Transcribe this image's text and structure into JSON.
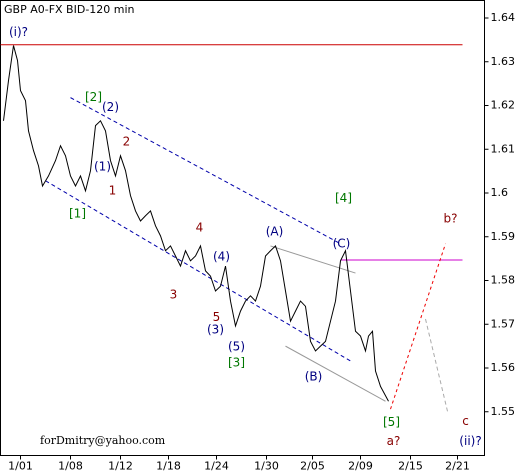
{
  "chart_data": {
    "type": "line",
    "title": "GBP A0-FX BID-120 min",
    "credit": "forDmitry@yahoo.com",
    "xlim": [
      0,
      96.8
    ],
    "ylim": [
      1.54,
      1.644
    ],
    "yticks": [
      1.55,
      1.56,
      1.57,
      1.58,
      1.59,
      1.6,
      1.61,
      1.62,
      1.63,
      1.64
    ],
    "xticks": [
      {
        "value": 4,
        "label": "1/01"
      },
      {
        "value": 14,
        "label": "1/08"
      },
      {
        "value": 24,
        "label": "1/12"
      },
      {
        "value": 33.6,
        "label": "1/18"
      },
      {
        "value": 43.2,
        "label": "1/24"
      },
      {
        "value": 53.2,
        "label": "1/30"
      },
      {
        "value": 62.4,
        "label": "2/05"
      },
      {
        "value": 72,
        "label": "2/09"
      },
      {
        "value": 82,
        "label": "2/15"
      },
      {
        "value": 91.4,
        "label": "2/21"
      }
    ],
    "series": [
      {
        "name": "GBP",
        "color": "#000000",
        "x": [
          0.6,
          1.6,
          2.6,
          3.4,
          4,
          5,
          5.6,
          6.6,
          7.6,
          8.4,
          9.6,
          11,
          12,
          13,
          14,
          15,
          16,
          17,
          18,
          19,
          20,
          21,
          22,
          23,
          24,
          25,
          26,
          27,
          28,
          29,
          30,
          31,
          32,
          33,
          34,
          35,
          36,
          37,
          38,
          39,
          40,
          41,
          42,
          43,
          44,
          45,
          46,
          47,
          48,
          49,
          50,
          51,
          52,
          53,
          54,
          55,
          56,
          57,
          58,
          59,
          60,
          61,
          62,
          63,
          64,
          65,
          66,
          67,
          68,
          69,
          70,
          71,
          72,
          73,
          73.6,
          74.4,
          75,
          76,
          77.6
        ],
        "values": [
          1.6165,
          1.6257,
          1.6337,
          1.6303,
          1.6234,
          1.6211,
          1.6142,
          1.6097,
          1.6062,
          1.6016,
          1.6039,
          1.6074,
          1.6108,
          1.6085,
          1.6039,
          1.6016,
          1.6039,
          1.6005,
          1.6051,
          1.6154,
          1.6165,
          1.6142,
          1.6074,
          1.6039,
          1.6085,
          1.6051,
          1.5994,
          1.5959,
          1.5936,
          1.5948,
          1.5959,
          1.5925,
          1.5902,
          1.5868,
          1.5879,
          1.5856,
          1.5833,
          1.5868,
          1.5845,
          1.5856,
          1.5879,
          1.5822,
          1.581,
          1.5776,
          1.5787,
          1.5833,
          1.5753,
          1.5696,
          1.573,
          1.5753,
          1.5765,
          1.5753,
          1.5787,
          1.5856,
          1.5868,
          1.5879,
          1.5845,
          1.5776,
          1.5707,
          1.573,
          1.5753,
          1.5741,
          1.5661,
          1.5639,
          1.565,
          1.5661,
          1.5707,
          1.5753,
          1.5845,
          1.5868,
          1.5776,
          1.5684,
          1.5673,
          1.5639,
          1.5673,
          1.5684,
          1.5593,
          1.5558,
          1.5524
        ]
      }
    ],
    "lines": [
      {
        "color": "#cc0000",
        "dash": "",
        "x": [
          0,
          92.4
        ],
        "values": [
          1.6339,
          1.6339
        ]
      },
      {
        "color": "#cc00cc",
        "dash": "",
        "x": [
          68,
          92.4
        ],
        "values": [
          1.5847,
          1.5847
        ]
      },
      {
        "color": "#0000aa",
        "dash": "4,3",
        "x": [
          14,
          68
        ],
        "values": [
          1.6218,
          1.5884
        ]
      },
      {
        "color": "#0000aa",
        "dash": "4,3",
        "x": [
          9,
          70
        ],
        "values": [
          1.6028,
          1.5616
        ]
      },
      {
        "color": "#999999",
        "dash": "",
        "x": [
          54,
          71
        ],
        "values": [
          1.5879,
          1.5817
        ]
      },
      {
        "color": "#999999",
        "dash": "",
        "x": [
          57,
          77
        ],
        "values": [
          1.565,
          1.5524
        ]
      },
      {
        "color": "#ee0000",
        "dash": "3,3",
        "x": [
          78,
          89
        ],
        "values": [
          1.5506,
          1.5884
        ]
      },
      {
        "color": "#aaaaaa",
        "dash": "4,3",
        "x": [
          85,
          89.4
        ],
        "values": [
          1.5712,
          1.5501
        ]
      }
    ],
    "annotations": [
      {
        "text": "(i)?",
        "color": "#000080",
        "x": 3.6,
        "y": 1.6367
      },
      {
        "text": "[2]",
        "color": "#007700",
        "x": 18.6,
        "y": 1.6218
      },
      {
        "text": "(2)",
        "color": "#000080",
        "x": 22,
        "y": 1.6195
      },
      {
        "text": "2",
        "color": "#880000",
        "x": 25.2,
        "y": 1.6117
      },
      {
        "text": "(1)",
        "color": "#000080",
        "x": 20.4,
        "y": 1.606
      },
      {
        "text": "1",
        "color": "#880000",
        "x": 22.4,
        "y": 1.6005
      },
      {
        "text": "[1]",
        "color": "#007700",
        "x": 15.4,
        "y": 1.5952
      },
      {
        "text": "4",
        "color": "#880000",
        "x": 39.8,
        "y": 1.592
      },
      {
        "text": "(4)",
        "color": "#000080",
        "x": 44.2,
        "y": 1.5854
      },
      {
        "text": "3",
        "color": "#880000",
        "x": 34.6,
        "y": 1.5767
      },
      {
        "text": "5",
        "color": "#880000",
        "x": 43.2,
        "y": 1.5716
      },
      {
        "text": "(3)",
        "color": "#000080",
        "x": 43,
        "y": 1.5687
      },
      {
        "text": "(5)",
        "color": "#000080",
        "x": 47.2,
        "y": 1.5648
      },
      {
        "text": "[3]",
        "color": "#007700",
        "x": 47.2,
        "y": 1.5611
      },
      {
        "text": "(A)",
        "color": "#000080",
        "x": 54.8,
        "y": 1.5911
      },
      {
        "text": "[4]",
        "color": "#007700",
        "x": 68.6,
        "y": 1.5987
      },
      {
        "text": "(C)",
        "color": "#000080",
        "x": 68.2,
        "y": 1.5884
      },
      {
        "text": "b?",
        "color": "#880000",
        "x": 90,
        "y": 1.5941
      },
      {
        "text": "(B)",
        "color": "#000080",
        "x": 62.6,
        "y": 1.5579
      },
      {
        "text": "[5]",
        "color": "#007700",
        "x": 78.2,
        "y": 1.5476
      },
      {
        "text": "a?",
        "color": "#880000",
        "x": 78.6,
        "y": 1.5432
      },
      {
        "text": "c",
        "color": "#880000",
        "x": 93,
        "y": 1.5478
      },
      {
        "text": "(ii)?",
        "color": "#000080",
        "x": 94,
        "y": 1.5432
      }
    ]
  }
}
